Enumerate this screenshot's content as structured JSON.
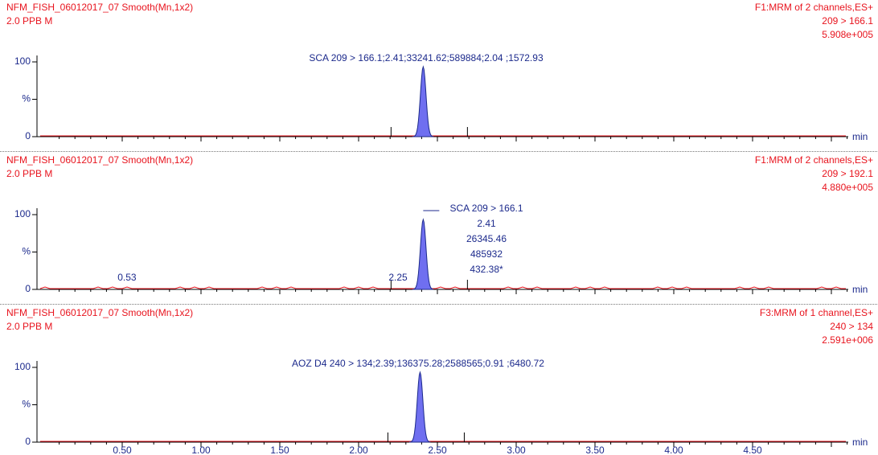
{
  "panels": [
    {
      "title": "NFM_FISH_06012017_07 Smooth(Mn,1x2)",
      "subtitle": "2.0 PPB M",
      "info": [
        "F1:MRM of 2 channels,ES+",
        "209 > 166.1",
        "5.908e+005"
      ],
      "annotation": [
        "SCA 209 > 166.1;2.41;33241.62;589884;2.04 ;1572.93"
      ],
      "y_labels": [
        "100",
        "%",
        "0"
      ],
      "peak_labels": []
    },
    {
      "title": "NFM_FISH_06012017_07 Smooth(Mn,1x2)",
      "subtitle": "2.0 PPB M",
      "info": [
        "F1:MRM of 2 channels,ES+",
        "209 > 192.1",
        "4.880e+005"
      ],
      "annotation": [
        "SCA 209 > 166.1",
        "2.41",
        "26345.46",
        "485932",
        "432.38*"
      ],
      "y_labels": [
        "100",
        "%",
        "0"
      ],
      "peak_labels": [
        "0.53",
        "2.25"
      ]
    },
    {
      "title": "NFM_FISH_06012017_07 Smooth(Mn,1x2)",
      "subtitle": "2.0 PPB M",
      "info": [
        "F3:MRM of 1 channel,ES+",
        "240 > 134",
        "2.591e+006"
      ],
      "annotation": [
        "AOZ D4 240 > 134;2.39;136375.28;2588565;0.91 ;6480.72"
      ],
      "y_labels": [
        "100",
        "%",
        "0"
      ],
      "peak_labels": []
    }
  ],
  "unit": "min",
  "x_labels": [
    "0.50",
    "1.00",
    "1.50",
    "2.00",
    "2.50",
    "3.00",
    "3.50",
    "4.00",
    "4.50"
  ]
}
